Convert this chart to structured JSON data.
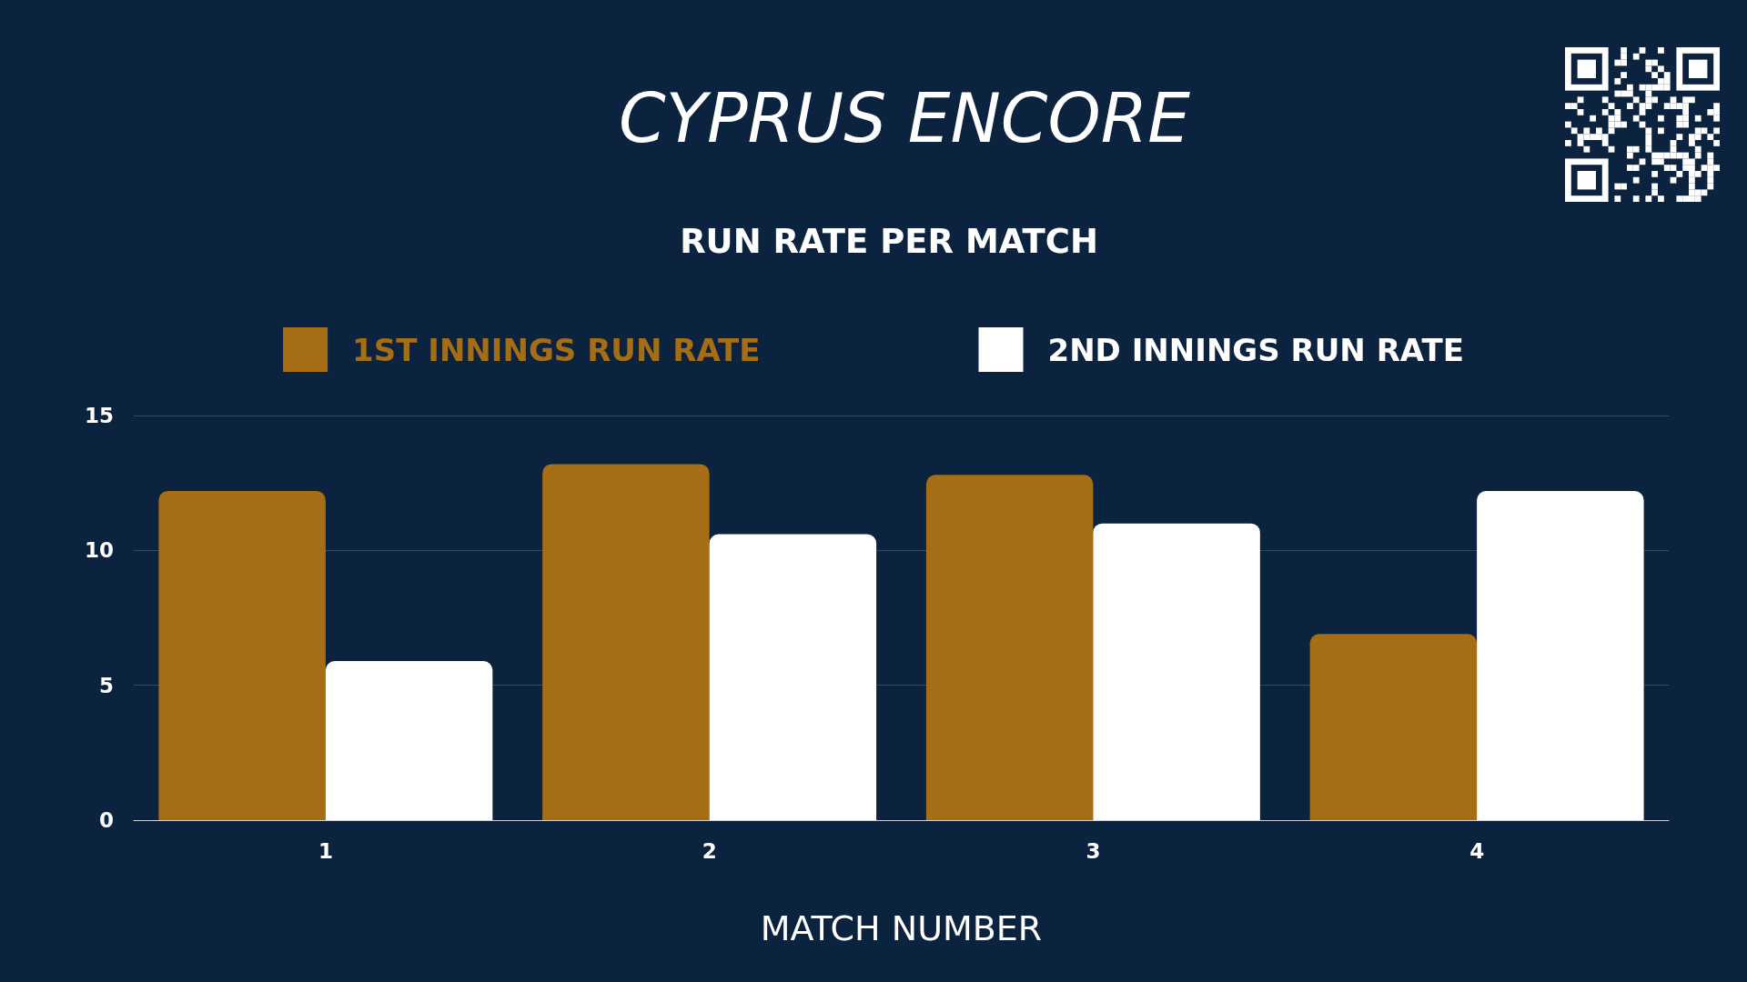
{
  "chart_data": {
    "type": "bar",
    "title": "CYPRUS ENCORE",
    "subtitle": "RUN RATE PER MATCH",
    "xlabel": "MATCH NUMBER",
    "categories": [
      "1",
      "2",
      "3",
      "4"
    ],
    "series": [
      {
        "name": "1ST INNINGS RUN RATE",
        "color": "#a66e14",
        "values": [
          12.2,
          13.2,
          12.8,
          6.9
        ]
      },
      {
        "name": "2ND INNINGS RUN RATE",
        "color": "#ffffff",
        "values": [
          5.9,
          10.6,
          11.0,
          12.2
        ]
      }
    ],
    "ylim": [
      0,
      15
    ],
    "yticks": [
      0,
      5,
      10,
      15
    ],
    "grid": "y",
    "legend": "top"
  }
}
